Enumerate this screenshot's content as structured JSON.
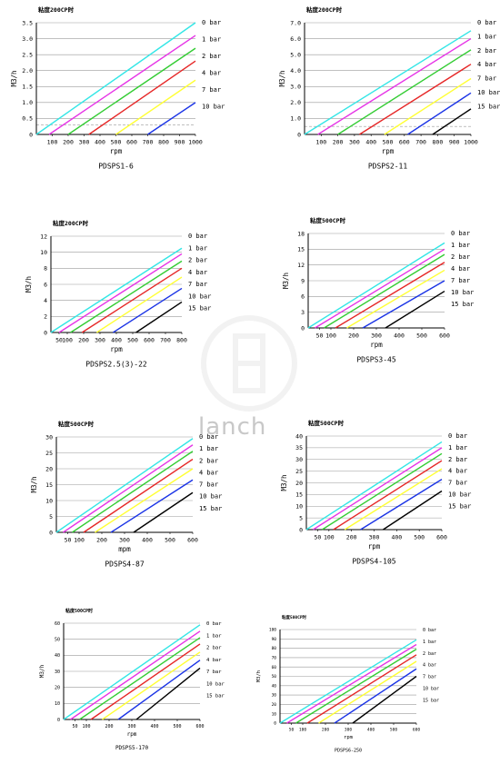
{
  "watermark_text": "lanch",
  "line_colors": [
    "#33e6e6",
    "#e633e6",
    "#33cc33",
    "#e62626",
    "#ffff33",
    "#1a33e6",
    "#000000"
  ],
  "chart_data": [
    {
      "type": "line",
      "title": "粘度200CP时",
      "name": "PDSPS1-6",
      "xlabel": "rpm",
      "ylabel": "M3/h",
      "xlim": [
        0,
        1000
      ],
      "ylim": [
        0,
        3.5
      ],
      "xticks": [
        100,
        200,
        300,
        400,
        500,
        600,
        700,
        800,
        900,
        1000
      ],
      "yticks": [
        "0",
        "0.5",
        "1.0",
        "1.5",
        "2.0",
        "2.5",
        "3.0",
        "3.5"
      ],
      "dashed_y": [
        0.3
      ],
      "series": [
        {
          "name": "0 bar",
          "x": [
            0,
            1000
          ],
          "y": [
            0,
            3.5
          ]
        },
        {
          "name": "1 bar",
          "x": [
            80,
            1000
          ],
          "y": [
            0,
            3.1
          ]
        },
        {
          "name": "2 bar",
          "x": [
            200,
            1000
          ],
          "y": [
            0,
            2.7
          ]
        },
        {
          "name": "4 bar",
          "x": [
            330,
            1000
          ],
          "y": [
            0,
            2.3
          ]
        },
        {
          "name": "7 bar",
          "x": [
            500,
            1000
          ],
          "y": [
            0,
            1.7
          ]
        },
        {
          "name": "10 bar",
          "x": [
            700,
            1000
          ],
          "y": [
            0,
            1.0
          ]
        }
      ]
    },
    {
      "type": "line",
      "title": "粘度200CP时",
      "name": "PDSPS2-11",
      "xlabel": "rpm",
      "ylabel": "M3/h",
      "xlim": [
        0,
        1000
      ],
      "ylim": [
        0,
        7
      ],
      "xticks": [
        100,
        200,
        300,
        400,
        500,
        600,
        700,
        800,
        900,
        1000
      ],
      "yticks": [
        "0",
        "1.0",
        "2.0",
        "3.0",
        "4.0",
        "5.0",
        "6.0",
        "7.0"
      ],
      "dashed_y": [
        0.5
      ],
      "series": [
        {
          "name": "0 bar",
          "x": [
            0,
            1000
          ],
          "y": [
            0,
            6.5
          ]
        },
        {
          "name": "1 bar",
          "x": [
            80,
            1000
          ],
          "y": [
            0,
            6.0
          ]
        },
        {
          "name": "2 bar",
          "x": [
            200,
            1000
          ],
          "y": [
            0,
            5.3
          ]
        },
        {
          "name": "4 bar",
          "x": [
            330,
            1000
          ],
          "y": [
            0,
            4.4
          ]
        },
        {
          "name": "7 bar",
          "x": [
            480,
            1000
          ],
          "y": [
            0,
            3.5
          ]
        },
        {
          "name": "10 bar",
          "x": [
            620,
            1000
          ],
          "y": [
            0,
            2.6
          ]
        },
        {
          "name": "15 bar",
          "x": [
            770,
            1000
          ],
          "y": [
            0,
            1.6
          ]
        }
      ]
    },
    {
      "type": "line",
      "title": "粘度200CP时",
      "name": "PDSPS2.5(3)-22",
      "xlabel": "rpm",
      "ylabel": "M3/h",
      "xlim": [
        0,
        800
      ],
      "ylim": [
        0,
        12
      ],
      "xticks": [
        50,
        100,
        200,
        300,
        400,
        500,
        600,
        700,
        800
      ],
      "yticks": [
        "0",
        "2",
        "4",
        "6",
        "8",
        "10",
        "12"
      ],
      "series": [
        {
          "name": "0 bar",
          "x": [
            0,
            800
          ],
          "y": [
            0,
            10.5
          ]
        },
        {
          "name": "1 bar",
          "x": [
            50,
            800
          ],
          "y": [
            0,
            9.8
          ]
        },
        {
          "name": "2 bar",
          "x": [
            120,
            800
          ],
          "y": [
            0,
            8.9
          ]
        },
        {
          "name": "4 bar",
          "x": [
            190,
            800
          ],
          "y": [
            0,
            8.0
          ]
        },
        {
          "name": "7 bar",
          "x": [
            280,
            800
          ],
          "y": [
            0,
            6.9
          ]
        },
        {
          "name": "10 bar",
          "x": [
            380,
            800
          ],
          "y": [
            0,
            5.5
          ]
        },
        {
          "name": "15 bar",
          "x": [
            520,
            800
          ],
          "y": [
            0,
            3.8
          ]
        }
      ]
    },
    {
      "type": "line",
      "title": "粘度500CP时",
      "name": "PDSPS3-45",
      "xlabel": "rpm",
      "ylabel": "M3/h",
      "xlim": [
        0,
        600
      ],
      "ylim": [
        0,
        18
      ],
      "xticks": [
        50,
        100,
        200,
        300,
        400,
        500,
        600
      ],
      "yticks": [
        "0",
        "3",
        "6",
        "9",
        "12",
        "15",
        "18"
      ],
      "series": [
        {
          "name": "0 bar",
          "x": [
            0,
            600
          ],
          "y": [
            0,
            16.2
          ]
        },
        {
          "name": "1 bar",
          "x": [
            30,
            600
          ],
          "y": [
            0,
            15.0
          ]
        },
        {
          "name": "2 bar",
          "x": [
            70,
            600
          ],
          "y": [
            0,
            14.0
          ]
        },
        {
          "name": "4 bar",
          "x": [
            120,
            600
          ],
          "y": [
            0,
            12.5
          ]
        },
        {
          "name": "7 bar",
          "x": [
            170,
            600
          ],
          "y": [
            0,
            11.0
          ]
        },
        {
          "name": "10 bar",
          "x": [
            240,
            600
          ],
          "y": [
            0,
            9.0
          ]
        },
        {
          "name": "15 bar",
          "x": [
            340,
            600
          ],
          "y": [
            0,
            7.0
          ]
        }
      ]
    },
    {
      "type": "line",
      "title": "粘度500CP时",
      "name": "PDSPS4-87",
      "xlabel": "mpm",
      "ylabel": "M3/h",
      "xlim": [
        0,
        600
      ],
      "ylim": [
        0,
        30
      ],
      "xticks": [
        50,
        100,
        200,
        300,
        400,
        500,
        600
      ],
      "yticks": [
        "0",
        "5",
        "10",
        "15",
        "20",
        "25",
        "30"
      ],
      "series": [
        {
          "name": "0 bar",
          "x": [
            0,
            600
          ],
          "y": [
            0,
            29.5
          ]
        },
        {
          "name": "1 bar",
          "x": [
            30,
            600
          ],
          "y": [
            0,
            27.5
          ]
        },
        {
          "name": "2 bar",
          "x": [
            70,
            600
          ],
          "y": [
            0,
            25.5
          ]
        },
        {
          "name": "4 bar",
          "x": [
            120,
            600
          ],
          "y": [
            0,
            23.0
          ]
        },
        {
          "name": "7 bar",
          "x": [
            170,
            600
          ],
          "y": [
            0,
            20.0
          ]
        },
        {
          "name": "10 bar",
          "x": [
            240,
            600
          ],
          "y": [
            0,
            16.5
          ]
        },
        {
          "name": "15 bar",
          "x": [
            340,
            600
          ],
          "y": [
            0,
            12.5
          ]
        }
      ]
    },
    {
      "type": "line",
      "title": "粘度500CP时",
      "name": "PDSPS4-105",
      "xlabel": "rpm",
      "ylabel": "M3/h",
      "xlim": [
        0,
        600
      ],
      "ylim": [
        0,
        40
      ],
      "xticks": [
        50,
        100,
        200,
        300,
        400,
        500,
        600
      ],
      "yticks": [
        "0",
        "5",
        "10",
        "15",
        "20",
        "25",
        "30",
        "35",
        "40"
      ],
      "series": [
        {
          "name": "0 bar",
          "x": [
            0,
            600
          ],
          "y": [
            0,
            37.5
          ]
        },
        {
          "name": "1 bar",
          "x": [
            30,
            600
          ],
          "y": [
            0,
            35.0
          ]
        },
        {
          "name": "2 bar",
          "x": [
            70,
            600
          ],
          "y": [
            0,
            32.5
          ]
        },
        {
          "name": "4 bar",
          "x": [
            120,
            600
          ],
          "y": [
            0,
            29.5
          ]
        },
        {
          "name": "7 bar",
          "x": [
            170,
            600
          ],
          "y": [
            0,
            26.0
          ]
        },
        {
          "name": "10 bar",
          "x": [
            240,
            600
          ],
          "y": [
            0,
            21.5
          ]
        },
        {
          "name": "15 bar",
          "x": [
            340,
            600
          ],
          "y": [
            0,
            16.5
          ]
        }
      ]
    },
    {
      "type": "line",
      "title": "粘度500CP时",
      "name": "PDSPS5-170",
      "xlabel": "rpm",
      "ylabel": "M3/h",
      "xlim": [
        0,
        600
      ],
      "ylim": [
        0,
        60
      ],
      "xticks": [
        50,
        100,
        200,
        300,
        400,
        500,
        600
      ],
      "yticks": [
        "0",
        "10",
        "20",
        "30",
        "40",
        "50",
        "60"
      ],
      "series": [
        {
          "name": "0 bar",
          "x": [
            0,
            600
          ],
          "y": [
            0,
            59
          ]
        },
        {
          "name": "1 bar",
          "x": [
            30,
            600
          ],
          "y": [
            0,
            55
          ]
        },
        {
          "name": "2 bar",
          "x": [
            70,
            600
          ],
          "y": [
            0,
            51
          ]
        },
        {
          "name": "4 bar",
          "x": [
            120,
            600
          ],
          "y": [
            0,
            47
          ]
        },
        {
          "name": "7 bar",
          "x": [
            170,
            600
          ],
          "y": [
            0,
            42
          ]
        },
        {
          "name": "10 bar",
          "x": [
            240,
            600
          ],
          "y": [
            0,
            37
          ]
        },
        {
          "name": "15 bar",
          "x": [
            320,
            600
          ],
          "y": [
            0,
            32
          ]
        }
      ]
    },
    {
      "type": "line",
      "title": "粘度500CP时",
      "name": "PDSPS6-250",
      "xlabel": "rpm",
      "ylabel": "M3/h",
      "xlim": [
        0,
        600
      ],
      "ylim": [
        0,
        100
      ],
      "xticks": [
        50,
        100,
        200,
        300,
        400,
        500,
        600
      ],
      "yticks": [
        "0",
        "10",
        "20",
        "30",
        "40",
        "50",
        "60",
        "70",
        "80",
        "90",
        "100"
      ],
      "series": [
        {
          "name": "0 bar",
          "x": [
            0,
            600
          ],
          "y": [
            0,
            89
          ]
        },
        {
          "name": "1 bar",
          "x": [
            30,
            600
          ],
          "y": [
            0,
            84
          ]
        },
        {
          "name": "2 bar",
          "x": [
            70,
            600
          ],
          "y": [
            0,
            79
          ]
        },
        {
          "name": "4 bar",
          "x": [
            120,
            600
          ],
          "y": [
            0,
            73
          ]
        },
        {
          "name": "7 bar",
          "x": [
            170,
            600
          ],
          "y": [
            0,
            66
          ]
        },
        {
          "name": "10 bar",
          "x": [
            240,
            600
          ],
          "y": [
            0,
            58
          ]
        },
        {
          "name": "15 bar",
          "x": [
            320,
            600
          ],
          "y": [
            0,
            50
          ]
        }
      ]
    }
  ]
}
